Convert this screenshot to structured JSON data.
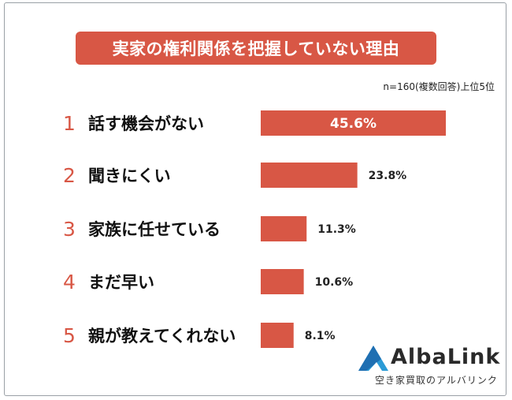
{
  "title": "実家の権利関係を把握していない理由",
  "note": "n=160(複数回答)上位5位",
  "colors": {
    "accent": "#d85745",
    "bar": "#d85745",
    "logo_blue": "#2b9bd6"
  },
  "chart_data": {
    "type": "bar",
    "orientation": "horizontal",
    "ranks": [
      "1",
      "2",
      "3",
      "4",
      "5"
    ],
    "categories": [
      "話す機会がない",
      "聞きにくい",
      "家族に任せている",
      "まだ早い",
      "親が教えてくれない"
    ],
    "values": [
      45.6,
      23.8,
      11.3,
      10.6,
      8.1
    ],
    "value_labels": [
      "45.6%",
      "23.8%",
      "11.3%",
      "10.6%",
      "8.1%"
    ],
    "unit": "%",
    "grid": false
  },
  "logo": {
    "name": "AlbaLink",
    "tagline": "空き家買取のアルバリンク"
  }
}
